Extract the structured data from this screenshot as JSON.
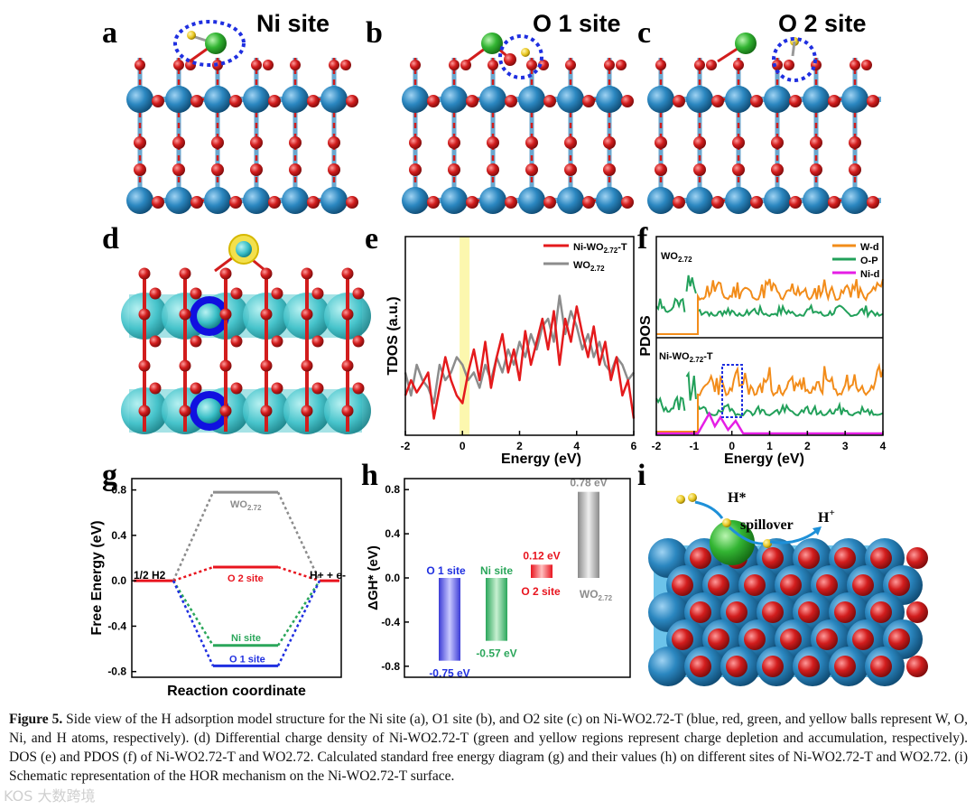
{
  "panels": {
    "a": {
      "letter": "a",
      "title": "Ni site"
    },
    "b": {
      "letter": "b",
      "title": "O 1 site"
    },
    "c": {
      "letter": "c",
      "title": "O 2 site"
    },
    "d": {
      "letter": "d"
    },
    "e": {
      "letter": "e"
    },
    "f": {
      "letter": "f",
      "top_label": "WO2.72",
      "bottom_label": "Ni-WO2.72-T",
      "ylabel": "PDOS",
      "xlabel": "Energy (eV)"
    },
    "g": {
      "letter": "g"
    },
    "h": {
      "letter": "h"
    },
    "i": {
      "letter": "i",
      "label_hstar": "H*",
      "label_spillover": "spillover",
      "label_hplus": "H+"
    }
  },
  "colors": {
    "W": "#2b87c0",
    "O": "#d21d1d",
    "Ni": "#33b533",
    "H": "#e8c620",
    "ni_wo": "#e41a1c",
    "wo": "#8c8c8c",
    "wd": "#f28c1a",
    "op": "#22a05a",
    "nid": "#e51ee5",
    "o1": "#1f2fe0",
    "ni_site": "#2aa65a",
    "o2": "#e8141e"
  },
  "chart_data": [
    {
      "id": "e",
      "type": "line",
      "title": "",
      "xlabel": "Energy (eV)",
      "ylabel": "TDOS (a.u.)",
      "xlim": [
        -2,
        6
      ],
      "xticks": [
        -2,
        0,
        2,
        4,
        6
      ],
      "legend": [
        "Ni-WO2.72-T",
        "WO2.72"
      ],
      "highlight_range": [
        -0.1,
        0.25
      ],
      "series": [
        {
          "name": "Ni-WO2.72-T",
          "x": [
            -2,
            -1.8,
            -1.6,
            -1.4,
            -1.2,
            -1.0,
            -0.8,
            -0.6,
            -0.4,
            -0.2,
            0,
            0.2,
            0.4,
            0.6,
            0.8,
            1.0,
            1.2,
            1.4,
            1.6,
            1.8,
            2.0,
            2.2,
            2.4,
            2.6,
            2.8,
            3.0,
            3.2,
            3.4,
            3.6,
            3.8,
            4.0,
            4.2,
            4.4,
            4.6,
            4.8,
            5.0,
            5.2,
            5.4,
            5.6,
            5.8,
            6.0
          ],
          "y": [
            0.2,
            0.3,
            0.22,
            0.28,
            0.35,
            0.05,
            0.25,
            0.45,
            0.3,
            0.2,
            0.15,
            0.35,
            0.5,
            0.3,
            0.55,
            0.25,
            0.45,
            0.6,
            0.35,
            0.5,
            0.3,
            0.62,
            0.4,
            0.55,
            0.7,
            0.5,
            0.75,
            0.4,
            0.7,
            0.55,
            0.78,
            0.6,
            0.45,
            0.65,
            0.4,
            0.55,
            0.3,
            0.45,
            0.2,
            0.3,
            0.05
          ]
        },
        {
          "name": "WO2.72",
          "x": [
            -2,
            -1.8,
            -1.6,
            -1.4,
            -1.2,
            -1.0,
            -0.8,
            -0.6,
            -0.4,
            -0.2,
            0,
            0.2,
            0.4,
            0.6,
            0.8,
            1.0,
            1.2,
            1.4,
            1.6,
            1.8,
            2.0,
            2.2,
            2.4,
            2.6,
            2.8,
            3.0,
            3.2,
            3.4,
            3.6,
            3.8,
            4.0,
            4.2,
            4.4,
            4.6,
            4.8,
            5.0,
            5.2,
            5.4,
            5.6,
            5.8,
            6.0
          ],
          "y": [
            0.35,
            0.2,
            0.4,
            0.3,
            0.25,
            0.15,
            0.4,
            0.3,
            0.35,
            0.45,
            0.4,
            0.3,
            0.35,
            0.25,
            0.4,
            0.3,
            0.45,
            0.35,
            0.5,
            0.4,
            0.55,
            0.45,
            0.6,
            0.5,
            0.65,
            0.7,
            0.55,
            0.85,
            0.6,
            0.75,
            0.65,
            0.5,
            0.6,
            0.45,
            0.55,
            0.4,
            0.35,
            0.45,
            0.4,
            0.3,
            0.35
          ]
        }
      ]
    },
    {
      "id": "f",
      "type": "line",
      "title": "",
      "xlabel": "Energy (eV)",
      "ylabel": "PDOS",
      "xlim": [
        -2,
        4
      ],
      "xticks": [
        -2,
        -1,
        0,
        1,
        2,
        3,
        4
      ],
      "legend": [
        "W-d",
        "O-P",
        "Ni-d"
      ]
    },
    {
      "id": "g",
      "type": "line",
      "title": "",
      "xlabel": "Reaction coordinate",
      "ylabel": "Free Energy (eV)",
      "ylim": [
        -0.85,
        0.9
      ],
      "yticks": [
        -0.8,
        -0.4,
        0.0,
        0.4,
        0.8
      ],
      "ytick_labels": [
        "-0.8",
        "-0.4",
        "0.0",
        "0.4",
        "0.8"
      ],
      "left_label": "1/2 H2",
      "right_label": "H+ + e-",
      "series": [
        {
          "name": "WO2.72",
          "value": 0.78
        },
        {
          "name": "O 2 site",
          "value": 0.12
        },
        {
          "name": "Ni site",
          "value": -0.57
        },
        {
          "name": "O 1 site",
          "value": -0.75
        }
      ]
    },
    {
      "id": "h",
      "type": "bar",
      "title": "",
      "xlabel": "",
      "ylabel": "ΔGH* (eV)",
      "ylim": [
        -0.9,
        0.9
      ],
      "yticks": [
        -0.8,
        -0.4,
        0.0,
        0.4,
        0.8
      ],
      "ytick_labels": [
        "-0.8",
        "-0.4",
        "0.0",
        "0.4",
        "0.8"
      ],
      "categories": [
        "O 1 site",
        "Ni site",
        "O 2 site",
        "WO2.72"
      ],
      "values": [
        -0.75,
        -0.57,
        0.12,
        0.78
      ],
      "value_labels": [
        "-0.75 eV",
        "-0.57 eV",
        "0.12 eV",
        "0.78 eV"
      ]
    }
  ],
  "caption": {
    "label": "Figure 5.",
    "text": " Side view of the H adsorption model structure for the Ni site (a), O1 site (b), and O2 site (c) on Ni-WO2.72-T (blue, red, green, and yellow balls represent W, O, Ni, and H atoms, respectively). (d) Differential charge density of Ni-WO2.72-T (green and yellow regions represent charge depletion and accumulation, respectively). DOS (e) and PDOS (f) of Ni-WO2.72-T and WO2.72. Calculated standard free energy diagram (g) and their values (h) on different sites of Ni-WO2.72-T and WO2.72. (i) Schematic representation of the HOR mechanism on the Ni-WO2.72-T surface."
  },
  "watermark": "KOS 大数跨境"
}
